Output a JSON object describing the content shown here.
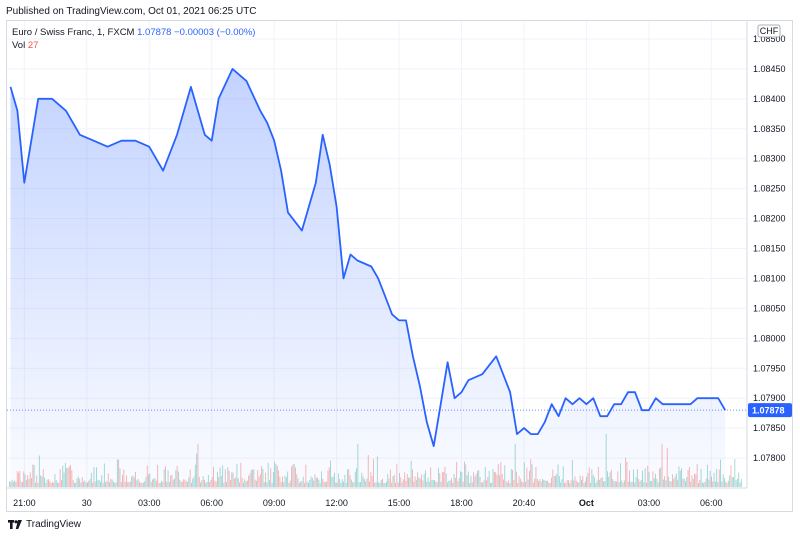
{
  "header": {
    "published": "Published on TradingView.com, Oct 01, 2021 06:25 UTC"
  },
  "legend": {
    "symbol": "Euro / Swiss Franc, 1, FXCM",
    "last": "1.07878",
    "change": "−0.00003 (−0.00%)",
    "vol_label": "Vol",
    "vol_value": "27"
  },
  "currency_label": "CHF",
  "last_price_label": "1.07878",
  "footer": {
    "brand": "TradingView"
  },
  "colors": {
    "line": "#2962ff",
    "up_vol": "#26a69a",
    "down_vol": "#ef5350",
    "grid": "#f0f3fa"
  },
  "chart_data": {
    "type": "area",
    "title": "Euro / Swiss Franc, 1, FXCM",
    "xlabel": "",
    "ylabel": "",
    "ylim": [
      1.0775,
      1.0853
    ],
    "x_tick_labels": [
      "21:00",
      "30",
      "03:00",
      "06:00",
      "09:00",
      "12:00",
      "15:00",
      "18:00",
      "20:40",
      "Oct",
      "03:00",
      "06:00"
    ],
    "y_tick_labels": [
      "1.08500",
      "1.08450",
      "1.08400",
      "1.08350",
      "1.08300",
      "1.08250",
      "1.08200",
      "1.08150",
      "1.08100",
      "1.08050",
      "1.08000",
      "1.07950",
      "1.07900",
      "1.07850",
      "1.07800"
    ],
    "y_ticks": [
      1.085,
      1.0845,
      1.084,
      1.0835,
      1.083,
      1.0825,
      1.082,
      1.0815,
      1.081,
      1.0805,
      1.08,
      1.0795,
      1.079,
      1.0785,
      1.078
    ],
    "x_ticks": [
      0,
      9,
      18,
      27,
      36,
      45,
      54,
      63,
      72,
      81,
      90,
      99
    ],
    "x": [
      -2,
      -1,
      0,
      1,
      2,
      3,
      4,
      6,
      8,
      10,
      12,
      14,
      16,
      18,
      20,
      22,
      24,
      26,
      27,
      28,
      30,
      32,
      34,
      35,
      36,
      37,
      38,
      40,
      42,
      43,
      44,
      45,
      46,
      47,
      48,
      50,
      51,
      52,
      53,
      54,
      55,
      56,
      57,
      58,
      59,
      60,
      61,
      62,
      63,
      64,
      66,
      68,
      70,
      71,
      72,
      73,
      74,
      75,
      76,
      77,
      78,
      79,
      80,
      81,
      82,
      83,
      84,
      85,
      86,
      87,
      88,
      89,
      90,
      91,
      92,
      93,
      94,
      95,
      96,
      97,
      98,
      99,
      100,
      101
    ],
    "series": [
      {
        "values": [
          1.0842,
          1.0838,
          1.0826,
          1.0833,
          1.084,
          1.084,
          1.084,
          1.0838,
          1.0834,
          1.0833,
          1.0832,
          1.0833,
          1.0833,
          1.0832,
          1.0828,
          1.0834,
          1.0842,
          1.0834,
          1.0833,
          1.084,
          1.0845,
          1.0843,
          1.0838,
          1.0836,
          1.0833,
          1.0828,
          1.0821,
          1.0818,
          1.0826,
          1.0834,
          1.0829,
          1.0822,
          1.081,
          1.0814,
          1.0813,
          1.0812,
          1.081,
          1.0807,
          1.0804,
          1.0803,
          1.0803,
          1.0797,
          1.0792,
          1.0786,
          1.0782,
          1.0789,
          1.0796,
          1.079,
          1.0791,
          1.0793,
          1.0794,
          1.0797,
          1.0791,
          1.0784,
          1.0785,
          1.0784,
          1.0784,
          1.0786,
          1.0789,
          1.0787,
          1.079,
          1.0789,
          1.079,
          1.0789,
          1.079,
          1.0787,
          1.0787,
          1.0789,
          1.0789,
          1.0791,
          1.0791,
          1.0788,
          1.0788,
          1.079,
          1.0789,
          1.0789,
          1.0789,
          1.0789,
          1.0789,
          1.079,
          1.079,
          1.079,
          1.079,
          1.0788
        ]
      }
    ]
  }
}
